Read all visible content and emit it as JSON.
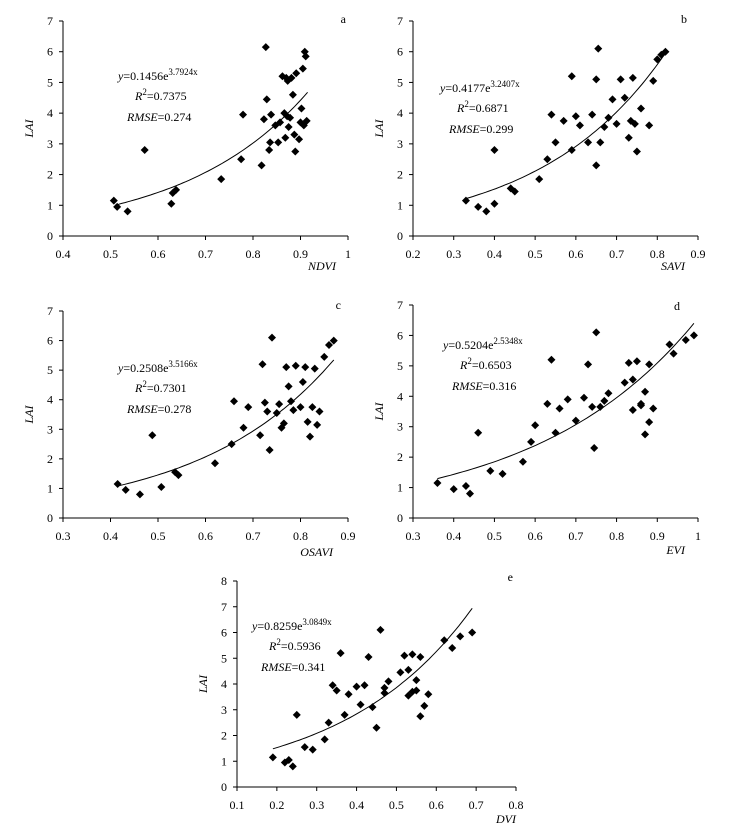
{
  "chart_data": [
    {
      "id": "a",
      "type": "scatter",
      "panel_label": "a",
      "xlabel": "NDVI",
      "ylabel": "LAI",
      "xlim": [
        0.4,
        1.0
      ],
      "ylim": [
        0,
        7
      ],
      "xticks": [
        0.4,
        0.5,
        0.6,
        0.7,
        0.8,
        0.9,
        1.0
      ],
      "xtick_labels": [
        "0.4",
        "0.5",
        "0.6",
        "0.7",
        "0.8",
        "0.9",
        "1"
      ],
      "yticks": [
        0,
        1,
        2,
        3,
        4,
        5,
        6,
        7
      ],
      "ytick_labels": [
        "0",
        "1",
        "2",
        "3",
        "4",
        "5",
        "6",
        "7"
      ],
      "fit": {
        "type": "exponential",
        "a": 0.1456,
        "b": 3.7924,
        "x_range": [
          0.51,
          0.915
        ]
      },
      "eq": {
        "y": "y",
        "rest": "=0.1456e",
        "exp": "3.7924x",
        "r": "R",
        "r_sup": "2",
        "r_val": "=0.7375",
        "rmse": "RMSE",
        "rmse_val": "=0.274"
      },
      "x": [
        0.507,
        0.514,
        0.536,
        0.572,
        0.628,
        0.631,
        0.638,
        0.733,
        0.775,
        0.779,
        0.818,
        0.823,
        0.827,
        0.829,
        0.834,
        0.836,
        0.838,
        0.847,
        0.853,
        0.857,
        0.862,
        0.866,
        0.868,
        0.87,
        0.872,
        0.873,
        0.875,
        0.878,
        0.881,
        0.884,
        0.887,
        0.889,
        0.891,
        0.897,
        0.9,
        0.902,
        0.905,
        0.907,
        0.909,
        0.911,
        0.913
      ],
      "y": [
        1.15,
        0.95,
        0.8,
        2.8,
        1.05,
        1.4,
        1.5,
        1.85,
        2.5,
        3.95,
        2.3,
        3.8,
        6.15,
        4.45,
        2.8,
        3.05,
        3.95,
        3.6,
        3.05,
        3.7,
        5.2,
        4.0,
        3.2,
        5.15,
        3.9,
        5.05,
        3.55,
        3.85,
        5.15,
        4.6,
        3.3,
        2.75,
        5.3,
        3.15,
        3.7,
        4.15,
        5.45,
        3.6,
        6.0,
        5.85,
        3.75
      ]
    },
    {
      "id": "b",
      "type": "scatter",
      "panel_label": "b",
      "xlabel": "SAVI",
      "ylabel": "LAI",
      "xlim": [
        0.2,
        0.9
      ],
      "ylim": [
        0,
        7
      ],
      "xticks": [
        0.2,
        0.3,
        0.4,
        0.5,
        0.6,
        0.7,
        0.8,
        0.9
      ],
      "xtick_labels": [
        "0.2",
        "0.3",
        "0.4",
        "0.5",
        "0.6",
        "0.7",
        "0.8",
        "0.9"
      ],
      "yticks": [
        0,
        1,
        2,
        3,
        4,
        5,
        6,
        7
      ],
      "ytick_labels": [
        "0",
        "1",
        "2",
        "3",
        "4",
        "5",
        "6",
        "7"
      ],
      "fit": {
        "type": "exponential",
        "a": 0.4177,
        "b": 3.2407,
        "x_range": [
          0.33,
          0.82
        ]
      },
      "eq": {
        "y": "y",
        "rest": "=0.4177e",
        "exp": "3.2407x",
        "r": "R",
        "r_sup": "2",
        "r_val": "=0.6871",
        "rmse": "RMSE",
        "rmse_val": "=0.299"
      },
      "x": [
        0.33,
        0.36,
        0.38,
        0.4,
        0.4,
        0.44,
        0.45,
        0.51,
        0.53,
        0.54,
        0.55,
        0.57,
        0.59,
        0.59,
        0.6,
        0.61,
        0.63,
        0.64,
        0.65,
        0.65,
        0.655,
        0.66,
        0.67,
        0.68,
        0.69,
        0.7,
        0.71,
        0.72,
        0.73,
        0.735,
        0.74,
        0.745,
        0.75,
        0.76,
        0.78,
        0.79,
        0.8,
        0.81,
        0.82
      ],
      "y": [
        1.15,
        0.95,
        0.8,
        1.05,
        2.8,
        1.55,
        1.45,
        1.85,
        2.5,
        3.95,
        3.05,
        3.75,
        2.8,
        5.2,
        3.9,
        3.6,
        3.05,
        3.95,
        2.3,
        5.1,
        6.1,
        3.05,
        3.55,
        3.85,
        4.45,
        3.65,
        5.1,
        4.5,
        3.2,
        3.75,
        5.15,
        3.65,
        2.75,
        4.15,
        3.6,
        5.05,
        5.75,
        5.9,
        6.0
      ]
    },
    {
      "id": "c",
      "type": "scatter",
      "panel_label": "c",
      "xlabel": "OSAVI",
      "ylabel": "LAI",
      "xlim": [
        0.3,
        0.9
      ],
      "ylim": [
        0,
        7
      ],
      "xticks": [
        0.3,
        0.4,
        0.5,
        0.6,
        0.7,
        0.8,
        0.9
      ],
      "xtick_labels": [
        "0.3",
        "0.4",
        "0.5",
        "0.6",
        "0.7",
        "0.8",
        "0.9"
      ],
      "yticks": [
        0,
        1,
        2,
        3,
        4,
        5,
        6,
        7
      ],
      "ytick_labels": [
        "0",
        "1",
        "2",
        "3",
        "4",
        "5",
        "6",
        "7"
      ],
      "fit": {
        "type": "exponential",
        "a": 0.2508,
        "b": 3.5166,
        "x_range": [
          0.415,
          0.87
        ]
      },
      "eq": {
        "y": "y",
        "rest": "=0.2508e",
        "exp": "3.5166x",
        "r": "R",
        "r_sup": "2",
        "r_val": "=0.7301",
        "rmse": "RMSE",
        "rmse_val": "=0.278"
      },
      "x": [
        0.415,
        0.432,
        0.462,
        0.488,
        0.507,
        0.536,
        0.543,
        0.62,
        0.655,
        0.66,
        0.68,
        0.69,
        0.715,
        0.72,
        0.725,
        0.73,
        0.735,
        0.74,
        0.75,
        0.755,
        0.76,
        0.765,
        0.77,
        0.775,
        0.78,
        0.785,
        0.79,
        0.8,
        0.805,
        0.81,
        0.815,
        0.82,
        0.825,
        0.83,
        0.835,
        0.84,
        0.85,
        0.86,
        0.87
      ],
      "y": [
        1.15,
        0.95,
        0.8,
        2.8,
        1.05,
        1.55,
        1.45,
        1.85,
        2.5,
        3.95,
        3.05,
        3.75,
        2.8,
        5.2,
        3.9,
        3.6,
        2.3,
        6.1,
        3.55,
        3.85,
        3.05,
        3.2,
        5.1,
        4.45,
        3.95,
        3.65,
        5.15,
        3.75,
        4.6,
        5.1,
        3.25,
        2.75,
        3.75,
        5.05,
        3.15,
        3.6,
        5.45,
        5.85,
        6.0
      ]
    },
    {
      "id": "d",
      "type": "scatter",
      "panel_label": "d",
      "xlabel": "EVI",
      "ylabel": "LAI",
      "xlim": [
        0.3,
        1.0
      ],
      "ylim": [
        0,
        7
      ],
      "xticks": [
        0.3,
        0.4,
        0.5,
        0.6,
        0.7,
        0.8,
        0.9,
        1.0
      ],
      "xtick_labels": [
        "0.3",
        "0.4",
        "0.5",
        "0.6",
        "0.7",
        "0.8",
        "0.9",
        "1"
      ],
      "yticks": [
        0,
        1,
        2,
        3,
        4,
        5,
        6,
        7
      ],
      "ytick_labels": [
        "0",
        "1",
        "2",
        "3",
        "4",
        "5",
        "6",
        "7"
      ],
      "fit": {
        "type": "exponential",
        "a": 0.5204,
        "b": 2.5348,
        "x_range": [
          0.36,
          0.99
        ]
      },
      "eq": {
        "y": "y",
        "rest": "=0.5204e",
        "exp": "2.5348x",
        "r": "R",
        "r_sup": "2",
        "r_val": "=0.6503",
        "rmse": "RMSE",
        "rmse_val": "=0.316"
      },
      "x": [
        0.36,
        0.4,
        0.43,
        0.44,
        0.46,
        0.49,
        0.52,
        0.57,
        0.59,
        0.6,
        0.63,
        0.64,
        0.65,
        0.66,
        0.68,
        0.7,
        0.72,
        0.73,
        0.74,
        0.745,
        0.75,
        0.76,
        0.77,
        0.78,
        0.82,
        0.83,
        0.84,
        0.84,
        0.85,
        0.86,
        0.86,
        0.87,
        0.87,
        0.88,
        0.88,
        0.89,
        0.93,
        0.94,
        0.97,
        0.99
      ],
      "y": [
        1.15,
        0.95,
        1.05,
        0.8,
        2.8,
        1.55,
        1.45,
        1.85,
        2.5,
        3.05,
        3.75,
        5.2,
        2.8,
        3.6,
        3.9,
        3.2,
        3.95,
        5.05,
        3.65,
        2.3,
        6.1,
        3.65,
        3.85,
        4.1,
        4.45,
        5.1,
        4.55,
        3.55,
        5.15,
        3.7,
        3.75,
        4.15,
        2.75,
        5.05,
        3.15,
        3.6,
        5.7,
        5.4,
        5.85,
        6.0
      ]
    },
    {
      "id": "e",
      "type": "scatter",
      "panel_label": "e",
      "xlabel": "DVI",
      "ylabel": "LAI",
      "xlim": [
        0.1,
        0.8
      ],
      "ylim": [
        0,
        8
      ],
      "xticks": [
        0.1,
        0.2,
        0.3,
        0.4,
        0.5,
        0.6,
        0.7,
        0.8
      ],
      "xtick_labels": [
        "0.1",
        "0.2",
        "0.3",
        "0.4",
        "0.5",
        "0.6",
        "0.7",
        "0.8"
      ],
      "yticks": [
        0,
        1,
        2,
        3,
        4,
        5,
        6,
        7,
        8
      ],
      "ytick_labels": [
        "0",
        "1",
        "2",
        "3",
        "4",
        "5",
        "6",
        "7",
        "8"
      ],
      "fit": {
        "type": "exponential",
        "a": 0.8259,
        "b": 3.0849,
        "x_range": [
          0.19,
          0.69
        ]
      },
      "eq": {
        "y": "y",
        "rest": "=0.8259e",
        "exp": "3.0849x",
        "r": "R",
        "r_sup": "2",
        "r_val": "=0.5936",
        "rmse": "RMSE",
        "rmse_val": "=0.341"
      },
      "x": [
        0.19,
        0.22,
        0.23,
        0.24,
        0.25,
        0.27,
        0.29,
        0.32,
        0.33,
        0.34,
        0.35,
        0.36,
        0.37,
        0.38,
        0.4,
        0.41,
        0.42,
        0.43,
        0.44,
        0.45,
        0.46,
        0.47,
        0.47,
        0.48,
        0.51,
        0.52,
        0.53,
        0.53,
        0.54,
        0.54,
        0.55,
        0.55,
        0.56,
        0.56,
        0.57,
        0.58,
        0.62,
        0.64,
        0.66,
        0.69
      ],
      "y": [
        1.15,
        0.95,
        1.05,
        0.8,
        2.8,
        1.55,
        1.45,
        1.85,
        2.5,
        3.95,
        3.75,
        5.2,
        2.8,
        3.6,
        3.9,
        3.2,
        3.95,
        5.05,
        3.1,
        2.3,
        6.1,
        3.65,
        3.85,
        4.1,
        4.45,
        5.1,
        4.55,
        3.55,
        5.15,
        3.7,
        3.75,
        4.15,
        2.75,
        5.05,
        3.15,
        3.6,
        5.7,
        5.4,
        5.85,
        6.0
      ]
    }
  ]
}
